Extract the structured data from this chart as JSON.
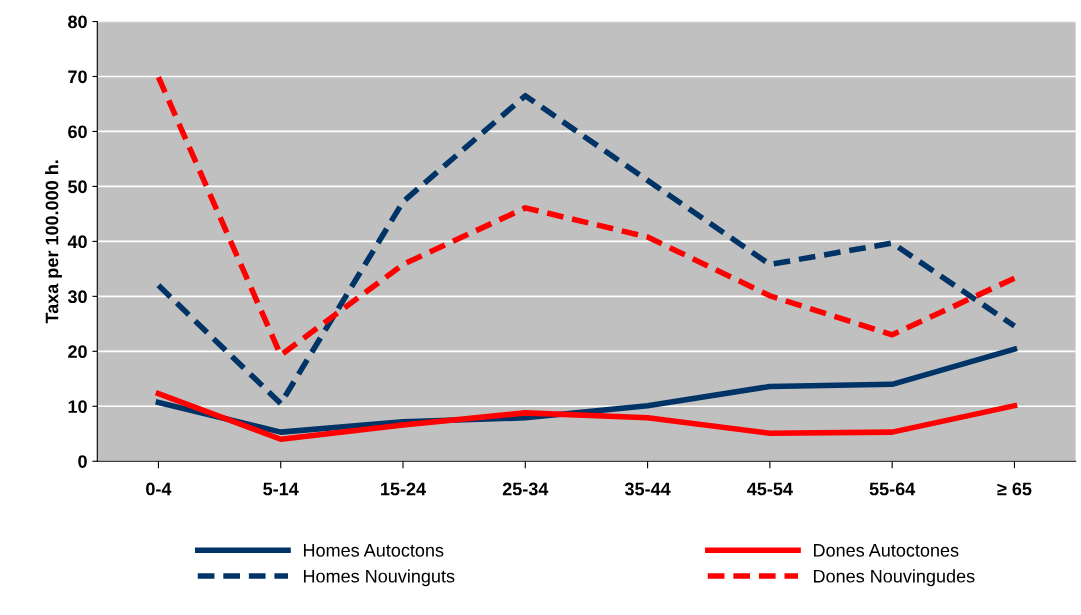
{
  "chart_data": {
    "type": "line",
    "ylabel": "Taxa per 100.000 h.",
    "categories": [
      "0-4",
      "5-14",
      "15-24",
      "25-34",
      "35-44",
      "45-54",
      "55-64",
      "≥ 65"
    ],
    "series": [
      {
        "name": "Homes Autoctons",
        "color": "#003366",
        "line_style": "solid",
        "values": [
          10.7,
          5.3,
          7.2,
          7.9,
          10.1,
          13.6,
          14.0,
          20.4
        ]
      },
      {
        "name": "Homes Nouvinguts",
        "color": "#003366",
        "line_style": "dashed",
        "values": [
          32,
          10.5,
          47.2,
          66.5,
          51.1,
          35.8,
          39.7,
          24.6
        ]
      },
      {
        "name": "Dones Autoctones",
        "color": "#ff0000",
        "line_style": "solid",
        "values": [
          12.3,
          4.0,
          6.6,
          8.8,
          7.9,
          5.1,
          5.3,
          10.1
        ]
      },
      {
        "name": "Dones Nouvingudes",
        "color": "#ff0000",
        "line_style": "dashed",
        "values": [
          69.9,
          19.3,
          35.8,
          46.1,
          40.8,
          30.1,
          23.0,
          33.3
        ]
      }
    ],
    "ylim": [
      0,
      80
    ],
    "yticks": [
      0,
      10,
      20,
      30,
      40,
      50,
      60,
      70,
      80
    ],
    "grid": "y",
    "legend": "bottom",
    "marker": "none"
  }
}
